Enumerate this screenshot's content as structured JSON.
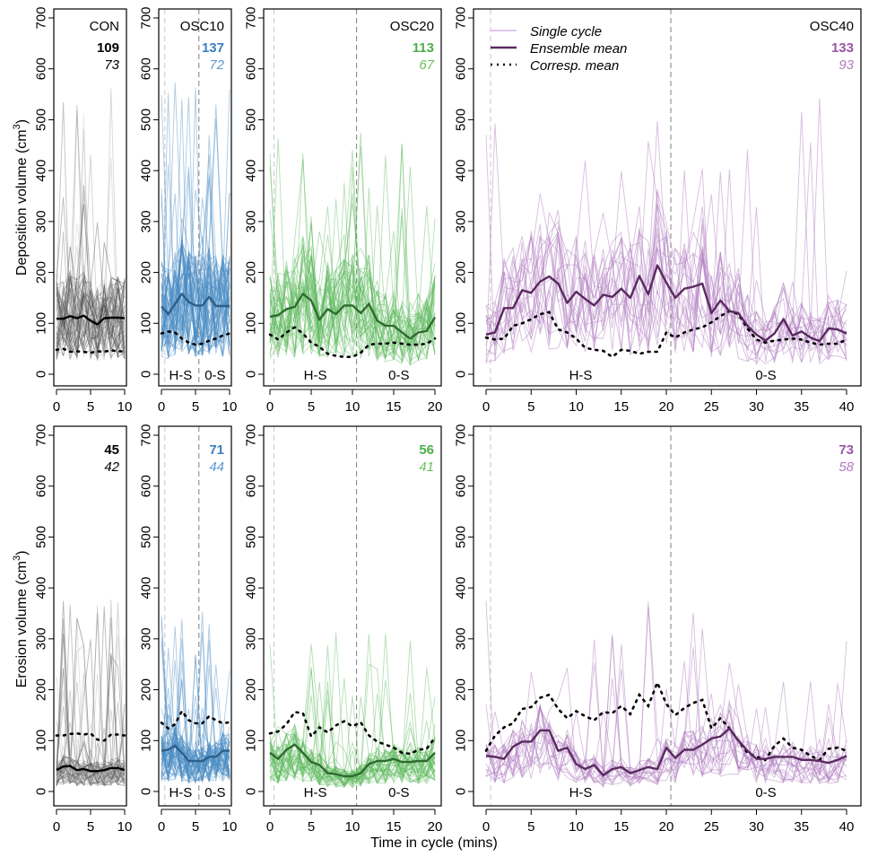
{
  "chart_data": [
    {
      "type": "line",
      "row": "deposition",
      "panel": "CON",
      "title": "CON",
      "ylabel": "Deposition volume (cm3)",
      "xlabel": "Time in cycle (mins)",
      "xlim": [
        0,
        10
      ],
      "ylim": [
        0,
        700
      ],
      "xticks": [
        0,
        5,
        10
      ],
      "yticks": [
        0,
        100,
        200,
        300,
        400,
        500,
        600,
        700
      ],
      "stat_bold": "109",
      "stat_italic": "73",
      "color": "#000000",
      "mean_color": "#000000",
      "phase_labels": [],
      "dividers": [],
      "single_cycle_range": [
        10,
        575
      ],
      "n_single_cycles": 60,
      "ensemble_mean": {
        "x": [
          0,
          1,
          2,
          3,
          4,
          5,
          6,
          7,
          8,
          9,
          10
        ],
        "y": [
          109,
          109,
          114,
          110,
          115,
          105,
          98,
          110,
          111,
          111,
          110
        ]
      },
      "corresp_mean": {
        "x": [
          0,
          1,
          2,
          3,
          4,
          5,
          6,
          7,
          8,
          9,
          10
        ],
        "y": [
          48,
          50,
          44,
          45,
          44,
          42,
          45,
          44,
          47,
          45,
          45
        ]
      }
    },
    {
      "type": "line",
      "row": "deposition",
      "panel": "OSC10",
      "title": "OSC10",
      "xlim": [
        0,
        10
      ],
      "ylim": [
        0,
        700
      ],
      "xticks": [
        0,
        5,
        10
      ],
      "yticks": [
        0,
        100,
        200,
        300,
        400,
        500,
        600,
        700
      ],
      "stat_bold": "137",
      "stat_italic": "72",
      "color": "#4a8bc4",
      "mean_color": "#2c5f8a",
      "phase_labels": [
        "H-S",
        "0-S"
      ],
      "dividers": [
        0.5,
        5.5
      ],
      "single_cycle_range": [
        20,
        575
      ],
      "n_single_cycles": 60,
      "ensemble_mean": {
        "x": [
          0,
          1,
          2,
          3,
          4,
          5,
          6,
          7,
          8,
          9,
          10
        ],
        "y": [
          133,
          118,
          138,
          158,
          142,
          135,
          135,
          152,
          134,
          134,
          134
        ]
      },
      "corresp_mean": {
        "x": [
          0,
          1,
          2,
          3,
          4,
          5,
          6,
          7,
          8,
          9,
          10
        ],
        "y": [
          80,
          84,
          82,
          70,
          62,
          58,
          60,
          66,
          70,
          76,
          80
        ]
      }
    },
    {
      "type": "line",
      "row": "deposition",
      "panel": "OSC20",
      "title": "OSC20",
      "xlim": [
        0,
        20
      ],
      "ylim": [
        0,
        700
      ],
      "xticks": [
        0,
        5,
        10,
        15,
        20
      ],
      "yticks": [
        0,
        100,
        200,
        300,
        400,
        500,
        600,
        700
      ],
      "stat_bold": "113",
      "stat_italic": "67",
      "color": "#5cb85c",
      "mean_color": "#2e6b2e",
      "phase_labels": [
        "H-S",
        "0-S"
      ],
      "dividers": [
        0.5,
        10.5
      ],
      "single_cycle_range": [
        10,
        480
      ],
      "n_single_cycles": 40,
      "ensemble_mean": {
        "x": [
          0,
          1,
          2,
          3,
          4,
          5,
          6,
          7,
          8,
          9,
          10,
          11,
          12,
          13,
          14,
          15,
          16,
          17,
          18,
          19,
          20
        ],
        "y": [
          113,
          116,
          128,
          132,
          158,
          145,
          107,
          128,
          118,
          135,
          135,
          120,
          138,
          105,
          95,
          95,
          82,
          70,
          82,
          85,
          112
        ]
      },
      "corresp_mean": {
        "x": [
          0,
          1,
          2,
          3,
          4,
          5,
          6,
          7,
          8,
          9,
          10,
          11,
          12,
          13,
          14,
          15,
          16,
          17,
          18,
          19,
          20
        ],
        "y": [
          78,
          68,
          82,
          92,
          80,
          62,
          54,
          40,
          36,
          34,
          34,
          42,
          58,
          60,
          60,
          62,
          60,
          58,
          58,
          60,
          70
        ]
      }
    },
    {
      "type": "line",
      "row": "deposition",
      "panel": "OSC40",
      "title": "OSC40",
      "xlim": [
        0,
        40
      ],
      "ylim": [
        0,
        700
      ],
      "xticks": [
        0,
        5,
        10,
        15,
        20,
        25,
        30,
        35,
        40
      ],
      "yticks": [
        0,
        100,
        200,
        300,
        400,
        500,
        600,
        700
      ],
      "stat_bold": "133",
      "stat_italic": "93",
      "color": "#b07cc0",
      "mean_color": "#5a2a60",
      "phase_labels": [
        "H-S",
        "0-S"
      ],
      "dividers": [
        0.5,
        20.5
      ],
      "single_cycle_range": [
        10,
        550
      ],
      "n_single_cycles": 20,
      "ensemble_mean": {
        "x": [
          0,
          1,
          2,
          3,
          4,
          5,
          6,
          7,
          8,
          9,
          10,
          11,
          12,
          13,
          14,
          15,
          16,
          17,
          18,
          19,
          20,
          21,
          22,
          23,
          24,
          25,
          26,
          27,
          28,
          29,
          30,
          31,
          32,
          33,
          34,
          35,
          36,
          37,
          38,
          39,
          40
        ],
        "y": [
          78,
          82,
          130,
          130,
          165,
          160,
          182,
          192,
          178,
          140,
          162,
          148,
          135,
          156,
          152,
          168,
          150,
          193,
          157,
          214,
          180,
          150,
          168,
          172,
          178,
          120,
          145,
          124,
          120,
          95,
          78,
          66,
          80,
          108,
          76,
          84,
          72,
          65,
          90,
          88,
          80
        ]
      },
      "corresp_mean": {
        "x": [
          0,
          1,
          2,
          3,
          4,
          5,
          6,
          7,
          8,
          9,
          10,
          11,
          12,
          13,
          14,
          15,
          16,
          17,
          18,
          19,
          20,
          21,
          22,
          23,
          24,
          25,
          26,
          27,
          28,
          29,
          30,
          31,
          32,
          33,
          34,
          35,
          36,
          37,
          38,
          39,
          40
        ],
        "y": [
          72,
          68,
          70,
          95,
          100,
          108,
          118,
          122,
          88,
          82,
          70,
          52,
          48,
          46,
          34,
          48,
          46,
          40,
          44,
          44,
          82,
          72,
          82,
          88,
          92,
          102,
          114,
          124,
          118,
          90,
          68,
          62,
          66,
          68,
          70,
          68,
          62,
          58,
          60,
          60,
          68
        ]
      }
    },
    {
      "type": "line",
      "row": "erosion",
      "panel": "CON",
      "ylabel": "Erosion volume (cm3)",
      "xlim": [
        0,
        10
      ],
      "ylim": [
        0,
        700
      ],
      "xticks": [
        0,
        5,
        10
      ],
      "yticks": [
        0,
        100,
        200,
        300,
        400,
        500,
        600,
        700
      ],
      "stat_bold": "45",
      "stat_italic": "42",
      "color": "#000000",
      "mean_color": "#000000",
      "phase_labels": [],
      "dividers": [],
      "single_cycle_range": [
        0,
        390
      ],
      "n_single_cycles": 60,
      "ensemble_mean": {
        "x": [
          0,
          1,
          2,
          3,
          4,
          5,
          6,
          7,
          8,
          9,
          10
        ],
        "y": [
          42,
          49,
          50,
          42,
          44,
          40,
          40,
          42,
          46,
          46,
          42
        ]
      },
      "corresp_mean": {
        "x": [
          0,
          1,
          2,
          3,
          4,
          5,
          6,
          7,
          8,
          9,
          10
        ],
        "y": [
          110,
          110,
          113,
          114,
          112,
          114,
          102,
          100,
          112,
          112,
          110
        ]
      }
    },
    {
      "type": "line",
      "row": "erosion",
      "panel": "OSC10",
      "xlim": [
        0,
        10
      ],
      "ylim": [
        0,
        700
      ],
      "xticks": [
        0,
        5,
        10
      ],
      "yticks": [
        0,
        100,
        200,
        300,
        400,
        500,
        600,
        700
      ],
      "stat_bold": "71",
      "stat_italic": "44",
      "color": "#4a8bc4",
      "mean_color": "#2c5f8a",
      "phase_labels": [
        "H-S",
        "0-S"
      ],
      "dividers": [
        0.5,
        5.5
      ],
      "single_cycle_range": [
        10,
        355
      ],
      "n_single_cycles": 60,
      "ensemble_mean": {
        "x": [
          0,
          1,
          2,
          3,
          4,
          5,
          6,
          7,
          8,
          9,
          10
        ],
        "y": [
          80,
          82,
          90,
          76,
          60,
          60,
          60,
          68,
          68,
          80,
          80
        ]
      },
      "corresp_mean": {
        "x": [
          0,
          1,
          2,
          3,
          4,
          5,
          6,
          7,
          8,
          9,
          10
        ],
        "y": [
          135,
          124,
          132,
          158,
          140,
          134,
          134,
          148,
          140,
          134,
          136
        ]
      }
    },
    {
      "type": "line",
      "row": "erosion",
      "panel": "OSC20",
      "xlim": [
        0,
        20
      ],
      "ylim": [
        0,
        700
      ],
      "xticks": [
        0,
        5,
        10,
        15,
        20
      ],
      "yticks": [
        0,
        100,
        200,
        300,
        400,
        500,
        600,
        700
      ],
      "stat_bold": "56",
      "stat_italic": "41",
      "color": "#5cb85c",
      "mean_color": "#2e6b2e",
      "phase_labels": [
        "H-S",
        "0-S"
      ],
      "dividers": [
        0.5,
        10.5
      ],
      "single_cycle_range": [
        5,
        315
      ],
      "n_single_cycles": 40,
      "ensemble_mean": {
        "x": [
          0,
          1,
          2,
          3,
          4,
          5,
          6,
          7,
          8,
          9,
          10,
          11,
          12,
          13,
          14,
          15,
          16,
          17,
          18,
          19,
          20
        ],
        "y": [
          76,
          64,
          82,
          92,
          76,
          58,
          52,
          36,
          34,
          30,
          30,
          36,
          54,
          60,
          60,
          64,
          58,
          58,
          60,
          60,
          76
        ]
      },
      "corresp_mean": {
        "x": [
          0,
          1,
          2,
          3,
          4,
          5,
          6,
          7,
          8,
          9,
          10,
          11,
          12,
          13,
          14,
          15,
          16,
          17,
          18,
          19,
          20
        ],
        "y": [
          114,
          118,
          132,
          156,
          154,
          108,
          126,
          116,
          130,
          138,
          128,
          136,
          110,
          98,
          92,
          86,
          76,
          74,
          82,
          84,
          106
        ]
      }
    },
    {
      "type": "line",
      "row": "erosion",
      "panel": "OSC40",
      "xlim": [
        0,
        40
      ],
      "ylim": [
        0,
        700
      ],
      "xticks": [
        0,
        5,
        10,
        15,
        20,
        25,
        30,
        35,
        40
      ],
      "yticks": [
        0,
        100,
        200,
        300,
        400,
        500,
        600,
        700
      ],
      "stat_bold": "73",
      "stat_italic": "58",
      "color": "#b07cc0",
      "mean_color": "#5a2a60",
      "phase_labels": [
        "H-S",
        "0-S"
      ],
      "dividers": [
        0.5,
        20.5
      ],
      "single_cycle_range": [
        0,
        375
      ],
      "n_single_cycles": 20,
      "ensemble_mean": {
        "x": [
          0,
          1,
          2,
          3,
          4,
          5,
          6,
          7,
          8,
          9,
          10,
          11,
          12,
          13,
          14,
          15,
          16,
          17,
          18,
          19,
          20,
          21,
          22,
          23,
          24,
          25,
          26,
          27,
          28,
          29,
          30,
          31,
          32,
          33,
          34,
          35,
          36,
          37,
          38,
          39,
          40
        ],
        "y": [
          70,
          68,
          64,
          88,
          98,
          98,
          120,
          120,
          80,
          86,
          54,
          44,
          52,
          32,
          44,
          48,
          36,
          42,
          48,
          44,
          86,
          66,
          82,
          82,
          92,
          104,
          108,
          124,
          100,
          80,
          64,
          64,
          68,
          68,
          68,
          62,
          62,
          60,
          56,
          62,
          70
        ]
      },
      "corresp_mean": {
        "x": [
          0,
          1,
          2,
          3,
          4,
          5,
          6,
          7,
          8,
          9,
          10,
          11,
          12,
          13,
          14,
          15,
          16,
          17,
          18,
          19,
          20,
          21,
          22,
          23,
          24,
          25,
          26,
          27,
          28,
          29,
          30,
          31,
          32,
          33,
          34,
          35,
          36,
          37,
          38,
          39,
          40
        ],
        "y": [
          80,
          110,
          126,
          134,
          162,
          166,
          184,
          190,
          162,
          144,
          158,
          148,
          140,
          156,
          154,
          168,
          152,
          190,
          168,
          214,
          172,
          150,
          164,
          174,
          180,
          124,
          144,
          124,
          100,
          76,
          68,
          62,
          90,
          104,
          86,
          82,
          70,
          62,
          84,
          86,
          80
        ]
      }
    }
  ],
  "legend": {
    "placement": "top-left of OSC40 deposition panel",
    "items": [
      {
        "label": "Single cycle",
        "style": "thin light line",
        "color": "#d7b6df"
      },
      {
        "label": "Ensemble mean",
        "style": "thick solid line",
        "color": "#5a2a60"
      },
      {
        "label": "Corresp. mean",
        "style": "dotted line",
        "color": "#000000"
      }
    ]
  },
  "axes_text": {
    "ylabel_top": "Deposition volume (cm",
    "ylabel_bottom": "Erosion volume (cm",
    "ylabel_sup": "3",
    "ylabel_close": ")",
    "xlabel": "Time in cycle (mins)"
  }
}
